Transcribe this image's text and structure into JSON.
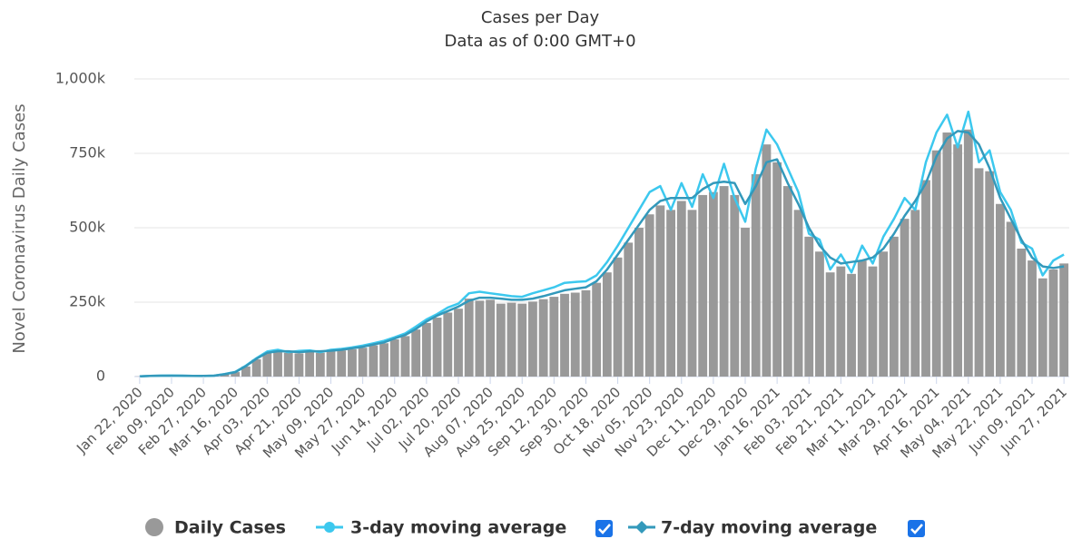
{
  "chart_data": {
    "type": "bar",
    "title": "Cases per Day",
    "subtitle": "Data as of 0:00 GMT+0",
    "y_label": "Novel Coronavirus Daily Cases",
    "categories": [
      "Jan 22, 2020",
      null,
      null,
      "Feb 09, 2020",
      null,
      null,
      "Feb 27, 2020",
      null,
      null,
      "Mar 16, 2020",
      null,
      null,
      "Apr 03, 2020",
      null,
      null,
      "Apr 21, 2020",
      null,
      null,
      "May 09, 2020",
      null,
      null,
      "May 27, 2020",
      null,
      null,
      "Jun 14, 2020",
      null,
      null,
      "Jul 02, 2020",
      null,
      null,
      "Jul 20, 2020",
      null,
      null,
      "Aug 07, 2020",
      null,
      null,
      "Aug 25, 2020",
      null,
      null,
      "Sep 12, 2020",
      null,
      null,
      "Sep 30, 2020",
      null,
      null,
      "Oct 18, 2020",
      null,
      null,
      "Nov 05, 2020",
      null,
      null,
      "Nov 23, 2020",
      null,
      null,
      "Dec 11, 2020",
      null,
      null,
      "Dec 29, 2020",
      null,
      null,
      "Jan 16, 2021",
      null,
      null,
      "Feb 03, 2021",
      null,
      null,
      "Feb 21, 2021",
      null,
      null,
      "Mar 11, 2021",
      null,
      null,
      "Mar 29, 2021",
      null,
      null,
      "Apr 16, 2021",
      null,
      null,
      "May 04, 2021",
      null,
      null,
      "May 22, 2021",
      null,
      null,
      "Jun 09, 2021",
      null,
      null,
      "Jun 27, 2021"
    ],
    "series": [
      {
        "name": "Daily Cases",
        "type": "bar",
        "color": "#999999",
        "values": [
          600,
          2000,
          2900,
          3000,
          2500,
          1800,
          1500,
          2800,
          8000,
          15000,
          34000,
          58000,
          78000,
          82000,
          80000,
          78000,
          83000,
          80000,
          86000,
          88000,
          92000,
          97000,
          105000,
          112000,
          125000,
          136000,
          158000,
          180000,
          198000,
          215000,
          228000,
          262000,
          255000,
          258000,
          245000,
          248000,
          245000,
          252000,
          260000,
          268000,
          278000,
          282000,
          290000,
          315000,
          350000,
          400000,
          450000,
          500000,
          545000,
          575000,
          560000,
          590000,
          560000,
          610000,
          620000,
          640000,
          610000,
          500000,
          680000,
          780000,
          720000,
          640000,
          560000,
          470000,
          420000,
          350000,
          370000,
          345000,
          390000,
          370000,
          420000,
          470000,
          530000,
          560000,
          660000,
          760000,
          820000,
          780000,
          830000,
          700000,
          690000,
          580000,
          520000,
          430000,
          390000,
          330000,
          360000,
          380000
        ]
      },
      {
        "name": "3-day moving average",
        "type": "line",
        "color": "#3cc8ee",
        "values": [
          600,
          2100,
          3100,
          3500,
          2800,
          2000,
          1800,
          3200,
          8500,
          16000,
          37000,
          62000,
          84000,
          90000,
          82000,
          86000,
          88000,
          82000,
          90000,
          93000,
          98000,
          104000,
          112000,
          120000,
          132000,
          145000,
          168000,
          192000,
          210000,
          232000,
          245000,
          280000,
          285000,
          280000,
          275000,
          270000,
          268000,
          280000,
          290000,
          300000,
          315000,
          318000,
          320000,
          340000,
          385000,
          440000,
          500000,
          560000,
          620000,
          640000,
          560000,
          650000,
          570000,
          680000,
          600000,
          715000,
          600000,
          520000,
          700000,
          830000,
          780000,
          700000,
          620000,
          480000,
          460000,
          360000,
          410000,
          350000,
          440000,
          380000,
          470000,
          530000,
          600000,
          560000,
          720000,
          820000,
          880000,
          770000,
          890000,
          720000,
          760000,
          620000,
          560000,
          450000,
          430000,
          340000,
          390000,
          410000
        ]
      },
      {
        "name": "7-day moving average",
        "type": "line",
        "color": "#3399bb",
        "values": [
          1000,
          2000,
          3000,
          3000,
          3000,
          2000,
          2000,
          3000,
          8000,
          15000,
          35000,
          60000,
          80000,
          85000,
          85000,
          82000,
          85000,
          85000,
          87000,
          90000,
          95000,
          100000,
          108000,
          115000,
          128000,
          140000,
          160000,
          185000,
          205000,
          220000,
          235000,
          255000,
          265000,
          265000,
          262000,
          258000,
          258000,
          262000,
          270000,
          280000,
          290000,
          295000,
          300000,
          320000,
          360000,
          410000,
          460000,
          510000,
          560000,
          590000,
          600000,
          600000,
          600000,
          630000,
          650000,
          655000,
          650000,
          580000,
          640000,
          720000,
          730000,
          650000,
          580000,
          500000,
          440000,
          400000,
          380000,
          385000,
          390000,
          400000,
          430000,
          480000,
          540000,
          590000,
          650000,
          740000,
          800000,
          825000,
          820000,
          780000,
          700000,
          600000,
          530000,
          460000,
          400000,
          370000,
          365000,
          370000
        ]
      }
    ],
    "ylim": [
      0,
      1000000
    ],
    "yticks": [
      0,
      {
        "value": 250000,
        "label": "250k"
      },
      {
        "value": 500000,
        "label": "500k"
      },
      {
        "value": 750000,
        "label": "750k"
      },
      {
        "value": 1000000,
        "label": "1,000k"
      }
    ],
    "grid": true
  }
}
